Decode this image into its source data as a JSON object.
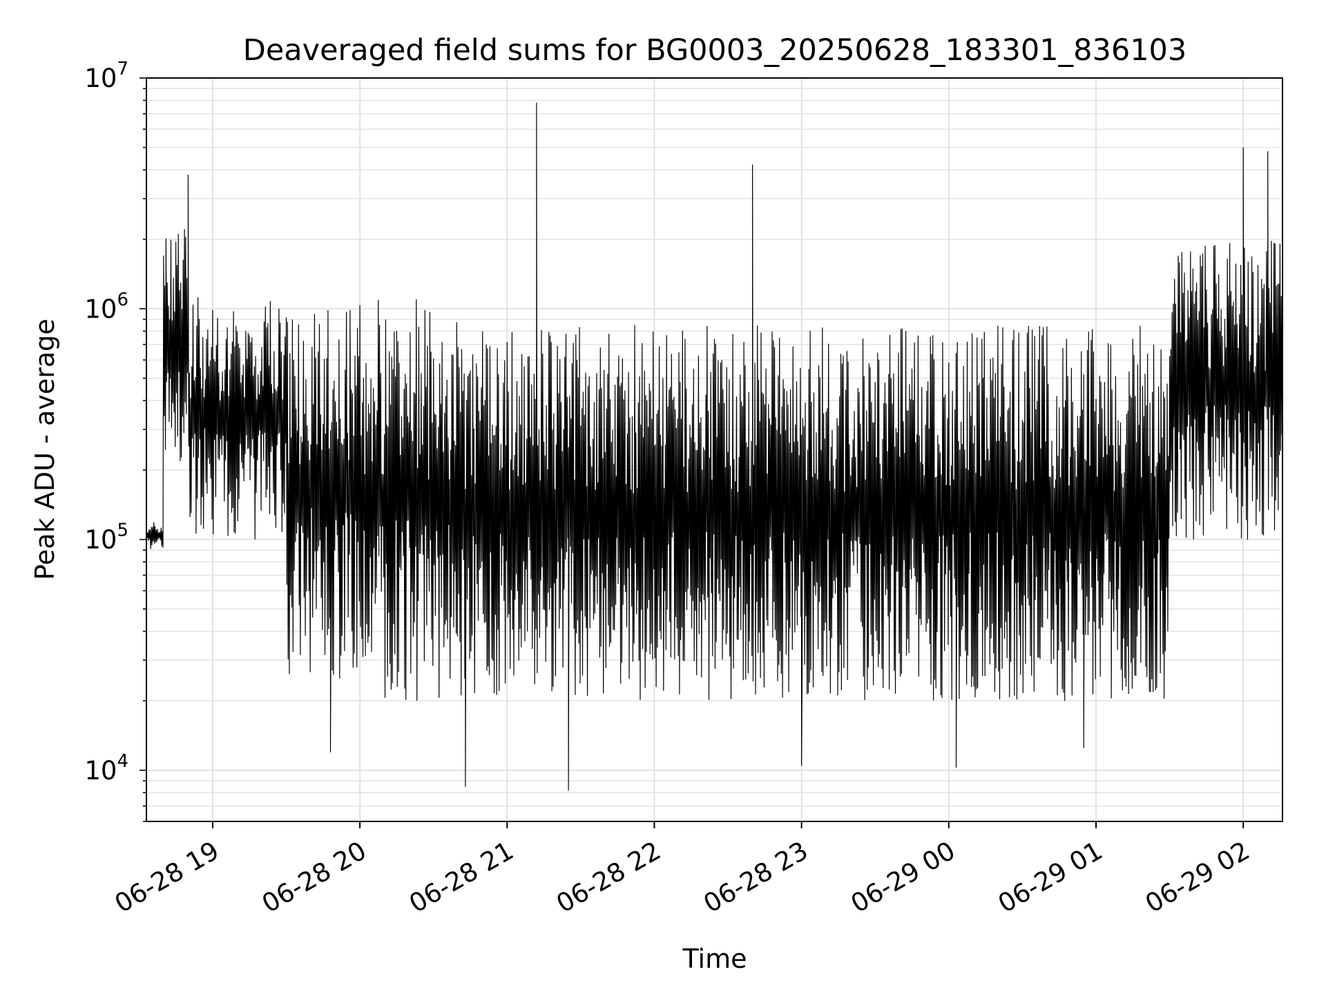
{
  "chart_data": {
    "type": "line",
    "title": "Deaveraged field sums for BG0003_20250628_183301_836103",
    "xlabel": "Time",
    "ylabel": "Peak ADU - average",
    "yscale": "log",
    "grid": true,
    "colors": {
      "line": "#000000",
      "grid": "#e2e2e2",
      "axes": "#000000"
    },
    "xlim": [
      "06-28 18:33",
      "06-29 02:16"
    ],
    "ylim": [
      6000,
      10000000
    ],
    "x_ticks": [
      {
        "t": "06-28 19:00",
        "label": "06-28 19"
      },
      {
        "t": "06-28 20:00",
        "label": "06-28 20"
      },
      {
        "t": "06-28 21:00",
        "label": "06-28 21"
      },
      {
        "t": "06-28 22:00",
        "label": "06-28 22"
      },
      {
        "t": "06-28 23:00",
        "label": "06-28 23"
      },
      {
        "t": "06-29 00:00",
        "label": "06-29 00"
      },
      {
        "t": "06-29 01:00",
        "label": "06-29 01"
      },
      {
        "t": "06-29 02:00",
        "label": "06-29 02"
      }
    ],
    "y_ticks": [
      {
        "value": 10000,
        "base": "10",
        "exp": "4"
      },
      {
        "value": 100000,
        "base": "10",
        "exp": "5"
      },
      {
        "value": 1000000,
        "base": "10",
        "exp": "6"
      },
      {
        "value": 10000000,
        "base": "10",
        "exp": "7"
      }
    ],
    "series": [
      {
        "style": "dense oscillating envelope (schematic)",
        "segments": [
          {
            "start": "06-28 18:33",
            "end": "06-28 18:40",
            "low": 90000,
            "high": 120000
          },
          {
            "start": "06-28 18:40",
            "end": "06-28 18:50",
            "low": 200000,
            "high": 2500000
          },
          {
            "start": "06-28 18:50",
            "end": "06-28 19:30",
            "low": 100000,
            "high": 1200000
          },
          {
            "start": "06-28 19:30",
            "end": "06-28 20:00",
            "low": 25000,
            "high": 1100000
          },
          {
            "start": "06-28 20:00",
            "end": "06-28 20:40",
            "low": 20000,
            "high": 1100000
          },
          {
            "start": "06-28 20:40",
            "end": "06-28 23:00",
            "low": 20000,
            "high": 850000
          },
          {
            "start": "06-28 23:00",
            "end": "06-29 01:30",
            "low": 20000,
            "high": 850000
          },
          {
            "start": "06-29 01:30",
            "end": "06-29 02:16",
            "low": 100000,
            "high": 2000000
          }
        ],
        "spikes": [
          {
            "t": "06-28 18:50",
            "value": 3800000
          },
          {
            "t": "06-28 21:12",
            "value": 7800000
          },
          {
            "t": "06-28 22:40",
            "value": 4200000
          },
          {
            "t": "06-29 02:00",
            "value": 5000000
          },
          {
            "t": "06-29 02:10",
            "value": 4800000
          }
        ],
        "dips": [
          {
            "t": "06-28 19:48",
            "value": 12000
          },
          {
            "t": "06-28 20:43",
            "value": 8500
          },
          {
            "t": "06-28 21:25",
            "value": 8200
          },
          {
            "t": "06-28 23:00",
            "value": 10500
          },
          {
            "t": "06-29 00:03",
            "value": 10300
          },
          {
            "t": "06-29 00:55",
            "value": 12500
          }
        ]
      }
    ]
  }
}
